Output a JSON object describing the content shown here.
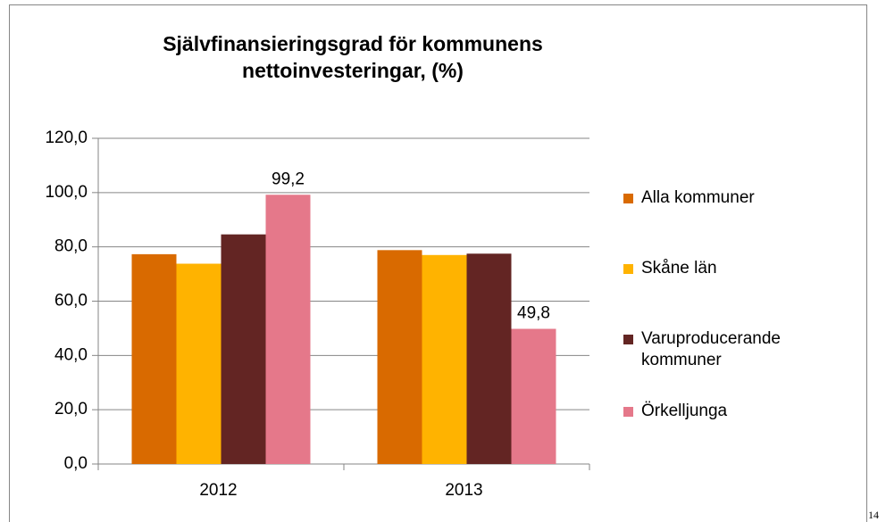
{
  "chart_data": {
    "type": "bar",
    "title": "Självfinansieringsgrad för kommunens nettoinvesteringar, (%)",
    "categories": [
      "2012",
      "2013"
    ],
    "series": [
      {
        "name": "Alla kommuner",
        "color": "#d96a00",
        "values": [
          77.3,
          78.8
        ]
      },
      {
        "name": "Skåne län",
        "color": "#ffb300",
        "values": [
          73.8,
          77.0
        ]
      },
      {
        "name": "Varuproducerande kommuner",
        "color": "#632523",
        "values": [
          84.6,
          77.5
        ]
      },
      {
        "name": "Örkelljunga",
        "color": "#e5788a",
        "values": [
          99.2,
          49.8
        ],
        "value_labels": [
          "99,2",
          "49,8"
        ]
      }
    ],
    "ylim": [
      0,
      120
    ],
    "yticks": [
      {
        "value": 0,
        "label": "0,0"
      },
      {
        "value": 20,
        "label": "20,0"
      },
      {
        "value": 40,
        "label": "40,0"
      },
      {
        "value": 60,
        "label": "60,0"
      },
      {
        "value": 80,
        "label": "80,0"
      },
      {
        "value": 100,
        "label": "100,0"
      },
      {
        "value": 120,
        "label": "120,0"
      }
    ],
    "grid": true,
    "legend": "right"
  },
  "page_number": "14"
}
